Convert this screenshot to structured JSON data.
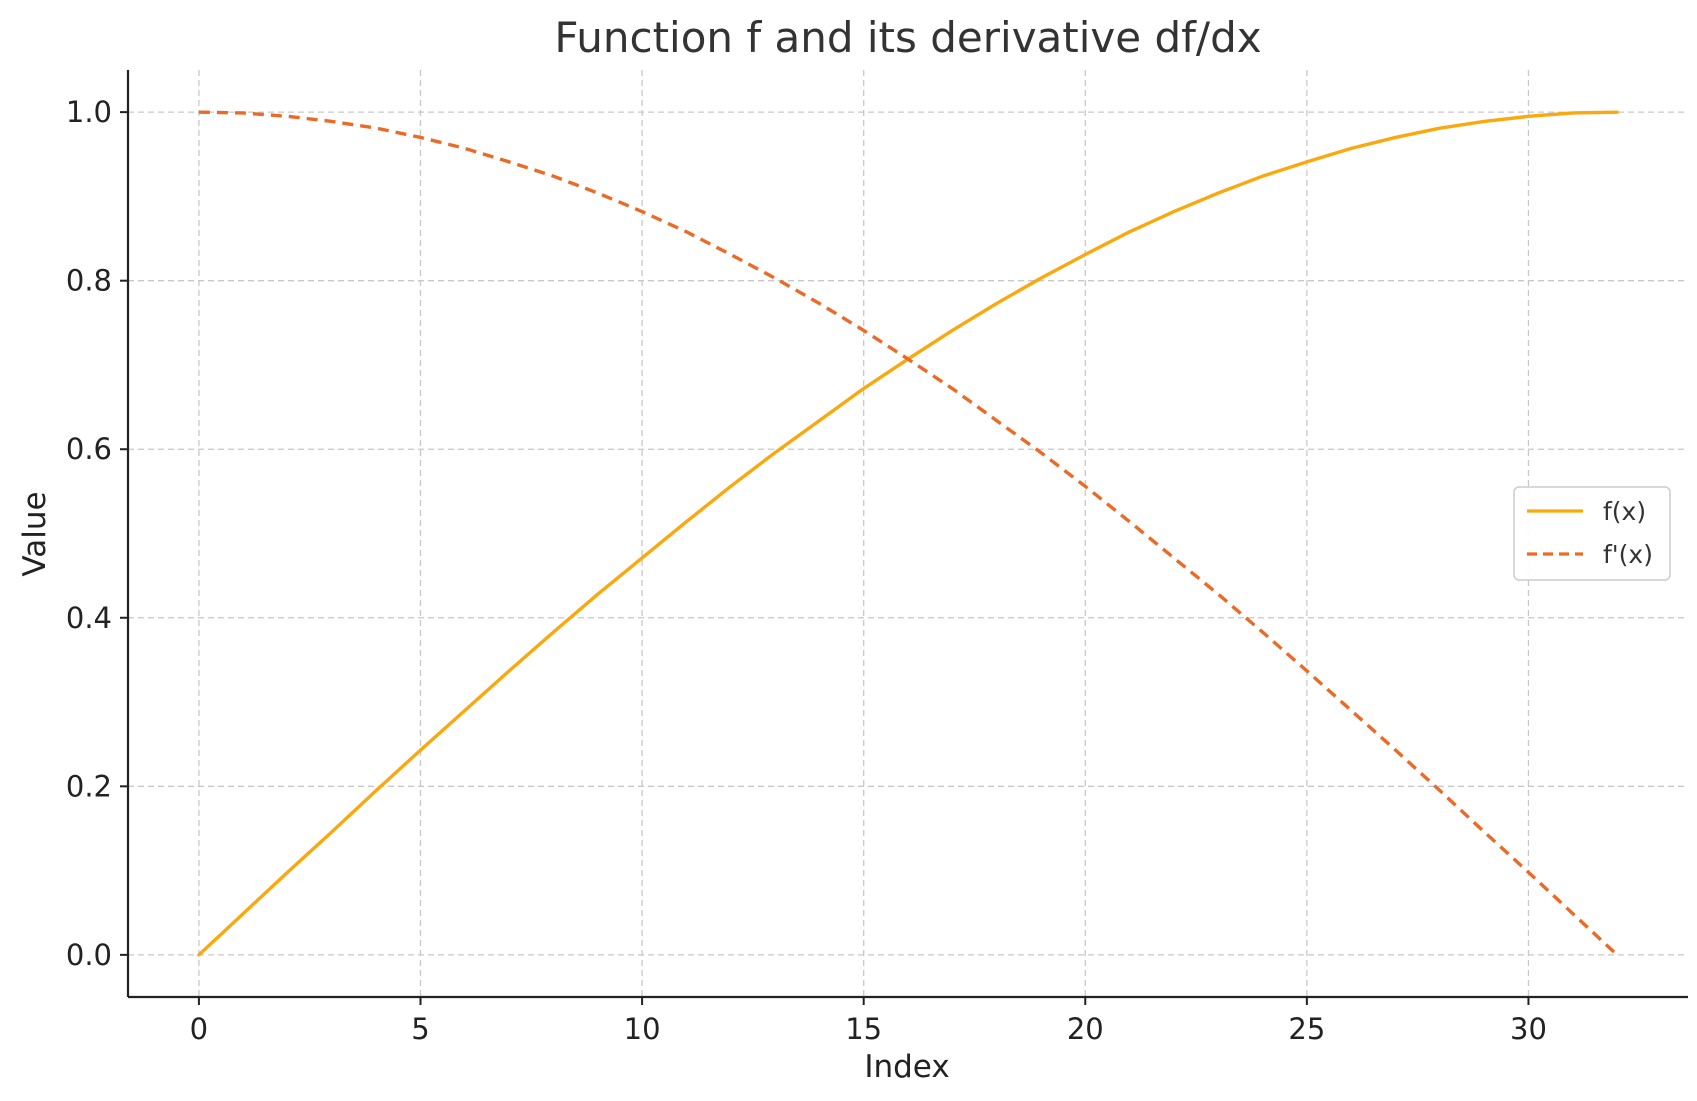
{
  "chart_data": {
    "type": "line",
    "title": "Function f and its derivative df/dx",
    "xlabel": "Index",
    "ylabel": "Value",
    "xlim": [
      -1.6,
      33.6
    ],
    "ylim": [
      -0.05,
      1.05
    ],
    "xticks": [
      0,
      5,
      10,
      15,
      20,
      25,
      30
    ],
    "xtick_labels": [
      "0",
      "5",
      "10",
      "15",
      "20",
      "25",
      "30"
    ],
    "yticks": [
      0.0,
      0.2,
      0.4,
      0.6,
      0.8,
      1.0
    ],
    "ytick_labels": [
      "0.0",
      "0.2",
      "0.4",
      "0.6",
      "0.8",
      "1.0"
    ],
    "grid": true,
    "legend_position": "center-right",
    "x": [
      0,
      1,
      2,
      3,
      4,
      5,
      6,
      7,
      8,
      9,
      10,
      11,
      12,
      13,
      14,
      15,
      16,
      17,
      18,
      19,
      20,
      21,
      22,
      23,
      24,
      25,
      26,
      27,
      28,
      29,
      30,
      31,
      32
    ],
    "series": [
      {
        "name": "f(x)",
        "color": "#F9A80E",
        "style": "solid",
        "values": [
          0.0,
          0.049,
          0.098,
          0.146,
          0.195,
          0.243,
          0.29,
          0.337,
          0.383,
          0.428,
          0.471,
          0.514,
          0.556,
          0.596,
          0.634,
          0.672,
          0.707,
          0.741,
          0.773,
          0.803,
          0.831,
          0.858,
          0.882,
          0.904,
          0.924,
          0.941,
          0.957,
          0.97,
          0.981,
          0.989,
          0.995,
          0.999,
          1.0
        ]
      },
      {
        "name": "f'(x)",
        "color": "#EB6A25",
        "style": "dashed",
        "values": [
          1.0,
          0.999,
          0.995,
          0.989,
          0.981,
          0.97,
          0.957,
          0.941,
          0.924,
          0.904,
          0.882,
          0.858,
          0.831,
          0.803,
          0.773,
          0.741,
          0.707,
          0.672,
          0.634,
          0.596,
          0.556,
          0.514,
          0.471,
          0.428,
          0.383,
          0.337,
          0.29,
          0.243,
          0.195,
          0.146,
          0.098,
          0.049,
          0.0
        ]
      }
    ]
  }
}
